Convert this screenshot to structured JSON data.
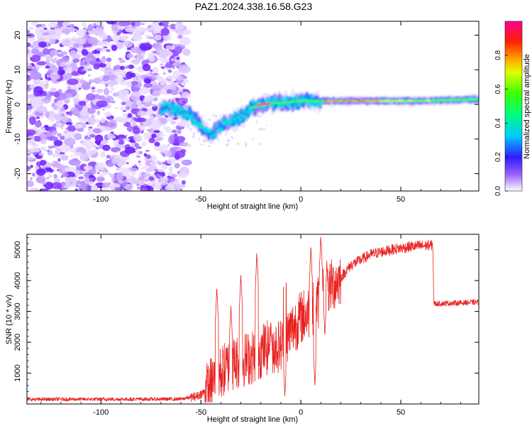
{
  "figure": {
    "title": "PAZ1.2024.338.16.58.G23"
  },
  "chart_data": [
    {
      "type": "heatmap",
      "title": "PAZ1.2024.338.16.58.G23",
      "xlabel": "Height of straight line (km)",
      "ylabel": "Frequency (Hz)",
      "xlim": [
        -137,
        89
      ],
      "ylim": [
        -25,
        24
      ],
      "xticks": [
        -100,
        -50,
        0,
        50
      ],
      "yticks": [
        -20,
        -10,
        0,
        10,
        20
      ],
      "grid": false,
      "colorbar": {
        "label": "Normalized spectral amplitude",
        "range": [
          0,
          1
        ],
        "ticks": [
          "0.0",
          "0.2",
          "0.4",
          "0.6",
          "0.8"
        ],
        "colormap": "rainbow (white→violet→blue→cyan→green→yellow→orange→red→magenta)"
      },
      "description_features": {
        "noise_region_x": [
          -137,
          -57
        ],
        "line_centre_path": [
          {
            "x": -70,
            "y": -1
          },
          {
            "x": -65,
            "y": -1
          },
          {
            "x": -55,
            "y": -3
          },
          {
            "x": -50,
            "y": -6
          },
          {
            "x": -45,
            "y": -9
          },
          {
            "x": -40,
            "y": -6
          },
          {
            "x": -35,
            "y": -5
          },
          {
            "x": -28,
            "y": -3
          },
          {
            "x": -25,
            "y": -1
          },
          {
            "x": -20,
            "y": 0
          },
          {
            "x": -10,
            "y": 0.5
          },
          {
            "x": 0,
            "y": 1
          },
          {
            "x": 10,
            "y": 1
          },
          {
            "x": 30,
            "y": 1
          },
          {
            "x": 60,
            "y": 1
          },
          {
            "x": 89,
            "y": 1.5
          }
        ]
      }
    },
    {
      "type": "line",
      "xlabel": "Height of straight line (km)",
      "ylabel": "SNR (10 * v/v)",
      "xlim": [
        -137,
        89
      ],
      "ylim": [
        0,
        5500
      ],
      "xticks": [
        -100,
        -50,
        0,
        50
      ],
      "yticks": [
        1000,
        2000,
        3000,
        4000,
        5000
      ],
      "grid": false,
      "color": "#e8221f",
      "envelope": [
        {
          "x": -137,
          "y": 150
        },
        {
          "x": -60,
          "y": 160
        },
        {
          "x": -52,
          "y": 250
        },
        {
          "x": -48,
          "y": 400
        },
        {
          "x": -42,
          "y": 900
        },
        {
          "x": -35,
          "y": 1300
        },
        {
          "x": -25,
          "y": 1500
        },
        {
          "x": -18,
          "y": 1800
        },
        {
          "x": -10,
          "y": 1900
        },
        {
          "x": -5,
          "y": 2400
        },
        {
          "x": 0,
          "y": 2800
        },
        {
          "x": 5,
          "y": 3000
        },
        {
          "x": 10,
          "y": 3400
        },
        {
          "x": 15,
          "y": 3800
        },
        {
          "x": 20,
          "y": 4100
        },
        {
          "x": 25,
          "y": 4500
        },
        {
          "x": 35,
          "y": 4850
        },
        {
          "x": 45,
          "y": 5000
        },
        {
          "x": 55,
          "y": 5100
        },
        {
          "x": 66,
          "y": 5150
        },
        {
          "x": 66.5,
          "y": 3250
        },
        {
          "x": 89,
          "y": 3300
        }
      ],
      "spikes": [
        {
          "x": -42,
          "y": 3800
        },
        {
          "x": -35,
          "y": 3200
        },
        {
          "x": -30,
          "y": 4200
        },
        {
          "x": -22,
          "y": 4900
        },
        {
          "x": -15,
          "y": 2600
        },
        {
          "x": -8,
          "y": 4800
        },
        {
          "x": 5,
          "y": 5100
        },
        {
          "x": 10,
          "y": 5450
        },
        {
          "x": 13,
          "y": 4600
        }
      ],
      "dips": [
        {
          "x": -8,
          "y": 250
        },
        {
          "x": 7,
          "y": 600
        },
        {
          "x": 12,
          "y": 2200
        }
      ]
    }
  ]
}
